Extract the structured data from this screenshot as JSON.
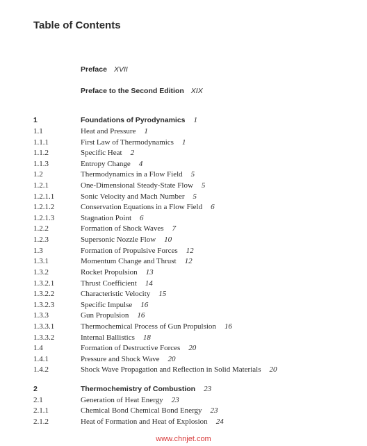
{
  "page_title": "Table of Contents",
  "preface": [
    {
      "label": "Preface",
      "page": "XVII"
    },
    {
      "label": "Preface to the Second Edition",
      "page": "XIX"
    }
  ],
  "toc": [
    {
      "num": "1",
      "title": "Foundations of Pyrodynamics",
      "page": "1",
      "chapter": true
    },
    {
      "num": "1.1",
      "title": "Heat and Pressure",
      "page": "1"
    },
    {
      "num": "1.1.1",
      "title": "First Law of Thermodynamics",
      "page": "1"
    },
    {
      "num": "1.1.2",
      "title": "Specific Heat",
      "page": "2"
    },
    {
      "num": "1.1.3",
      "title": "Entropy Change",
      "page": "4"
    },
    {
      "num": "1.2",
      "title": "Thermodynamics in a Flow Field",
      "page": "5"
    },
    {
      "num": "1.2.1",
      "title": "One-Dimensional Steady-State Flow",
      "page": "5"
    },
    {
      "num": "1.2.1.1",
      "title": "Sonic Velocity and Mach Number",
      "page": "5"
    },
    {
      "num": "1.2.1.2",
      "title": "Conservation Equations in a Flow Field",
      "page": "6"
    },
    {
      "num": "1.2.1.3",
      "title": "Stagnation Point",
      "page": "6"
    },
    {
      "num": "1.2.2",
      "title": "Formation of Shock Waves",
      "page": "7"
    },
    {
      "num": "1.2.3",
      "title": "Supersonic Nozzle Flow",
      "page": "10"
    },
    {
      "num": "1.3",
      "title": "Formation of Propulsive Forces",
      "page": "12"
    },
    {
      "num": "1.3.1",
      "title": "Momentum Change and Thrust",
      "page": "12"
    },
    {
      "num": "1.3.2",
      "title": "Rocket Propulsion",
      "page": "13"
    },
    {
      "num": "1.3.2.1",
      "title": "Thrust Coefficient",
      "page": "14"
    },
    {
      "num": "1.3.2.2",
      "title": "Characteristic Velocity",
      "page": "15"
    },
    {
      "num": "1.3.2.3",
      "title": "Specific Impulse",
      "page": "16"
    },
    {
      "num": "1.3.3",
      "title": "Gun Propulsion",
      "page": "16"
    },
    {
      "num": "1.3.3.1",
      "title": "Thermochemical Process of Gun Propulsion",
      "page": "16"
    },
    {
      "num": "1.3.3.2",
      "title": "Internal Ballistics",
      "page": "18"
    },
    {
      "num": "1.4",
      "title": "Formation of Destructive Forces",
      "page": "20"
    },
    {
      "num": "1.4.1",
      "title": "Pressure and Shock Wave",
      "page": "20"
    },
    {
      "num": "1.4.2",
      "title": "Shock Wave Propagation and Reflection in Solid Materials",
      "page": "20"
    },
    {
      "gap": true
    },
    {
      "num": "2",
      "title": "Thermochemistry of Combustion",
      "page": "23",
      "chapter": true
    },
    {
      "num": "2.1",
      "title": "Generation of Heat Energy",
      "page": "23"
    },
    {
      "num": "2.1.1",
      "title": "Chemical Bond Chemical Bond Energy",
      "page": "23"
    },
    {
      "num": "2.1.2",
      "title": "Heat of Formation and Heat of Explosion",
      "page": "24"
    }
  ],
  "watermark": "www.chnjet.com"
}
